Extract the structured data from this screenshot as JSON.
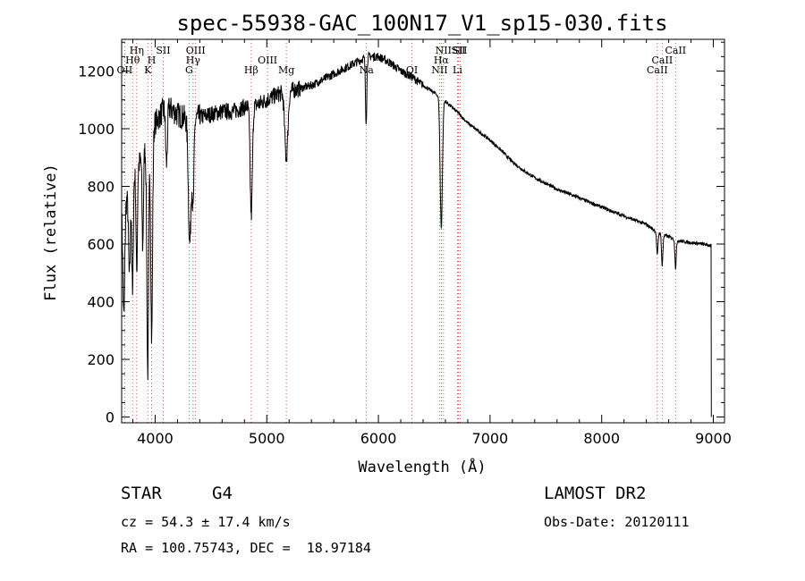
{
  "chart_data": {
    "type": "line",
    "title": "spec-55938-GAC_100N17_V1_sp15-030.fits",
    "xlabel": "Wavelength (Å)",
    "ylabel": "Flux (relative)",
    "xlim": [
      3700,
      9100
    ],
    "ylim": [
      -20,
      1310
    ],
    "xticks": [
      4000,
      5000,
      6000,
      7000,
      8000,
      9000
    ],
    "yticks": [
      0,
      200,
      400,
      600,
      800,
      1000,
      1200
    ],
    "continuum": [
      [
        3700,
        700
      ],
      [
        3800,
        820
      ],
      [
        3900,
        920
      ],
      [
        4000,
        1020
      ],
      [
        4100,
        1080
      ],
      [
        4200,
        1050
      ],
      [
        4300,
        1030
      ],
      [
        4400,
        1040
      ],
      [
        4500,
        1050
      ],
      [
        4600,
        1060
      ],
      [
        4700,
        1060
      ],
      [
        4800,
        1075
      ],
      [
        4900,
        1080
      ],
      [
        5000,
        1100
      ],
      [
        5100,
        1120
      ],
      [
        5200,
        1130
      ],
      [
        5300,
        1140
      ],
      [
        5400,
        1150
      ],
      [
        5500,
        1170
      ],
      [
        5600,
        1190
      ],
      [
        5700,
        1210
      ],
      [
        5800,
        1230
      ],
      [
        5900,
        1250
      ],
      [
        6000,
        1250
      ],
      [
        6100,
        1230
      ],
      [
        6200,
        1200
      ],
      [
        6300,
        1180
      ],
      [
        6400,
        1150
      ],
      [
        6500,
        1125
      ],
      [
        6600,
        1095
      ],
      [
        6700,
        1060
      ],
      [
        6800,
        1020
      ],
      [
        6900,
        990
      ],
      [
        7000,
        960
      ],
      [
        7100,
        925
      ],
      [
        7200,
        885
      ],
      [
        7300,
        855
      ],
      [
        7400,
        830
      ],
      [
        7500,
        810
      ],
      [
        7600,
        790
      ],
      [
        7700,
        775
      ],
      [
        7800,
        760
      ],
      [
        7900,
        743
      ],
      [
        8000,
        728
      ],
      [
        8100,
        712
      ],
      [
        8200,
        697
      ],
      [
        8300,
        682
      ],
      [
        8400,
        668
      ],
      [
        8500,
        640
      ],
      [
        8600,
        625
      ],
      [
        8700,
        610
      ],
      [
        8800,
        605
      ],
      [
        8900,
        600
      ],
      [
        8980,
        595
      ]
    ],
    "absorption_features": [
      {
        "x": 3720,
        "depth": 380,
        "width": 8
      },
      {
        "x": 3770,
        "depth": 300,
        "width": 8
      },
      {
        "x": 3798,
        "depth": 400,
        "width": 6
      },
      {
        "x": 3835,
        "depth": 350,
        "width": 6
      },
      {
        "x": 3889,
        "depth": 320,
        "width": 6
      },
      {
        "x": 3934,
        "depth": 800,
        "width": 8
      },
      {
        "x": 3969,
        "depth": 720,
        "width": 8
      },
      {
        "x": 4102,
        "depth": 200,
        "width": 8
      },
      {
        "x": 4310,
        "depth": 430,
        "width": 12
      },
      {
        "x": 4340,
        "depth": 300,
        "width": 8
      },
      {
        "x": 4861,
        "depth": 380,
        "width": 10
      },
      {
        "x": 5175,
        "depth": 230,
        "width": 14
      },
      {
        "x": 5890,
        "depth": 220,
        "width": 6
      },
      {
        "x": 6563,
        "depth": 450,
        "width": 10
      },
      {
        "x": 8498,
        "depth": 80,
        "width": 6
      },
      {
        "x": 8542,
        "depth": 110,
        "width": 6
      },
      {
        "x": 8662,
        "depth": 100,
        "width": 6
      }
    ],
    "spectral_lines": [
      {
        "label": "OII",
        "x": 3727
      },
      {
        "label": "Hθ",
        "x": 3798
      },
      {
        "label": "Hη",
        "x": 3835
      },
      {
        "label": "K",
        "x": 3934
      },
      {
        "label": "H",
        "x": 3969
      },
      {
        "label": "SII",
        "x": 4072
      },
      {
        "label": "G",
        "x": 4304
      },
      {
        "label": "Hγ",
        "x": 4340
      },
      {
        "label": "OIII",
        "x": 4363
      },
      {
        "label": "Hβ",
        "x": 4861
      },
      {
        "label": "OIII",
        "x": 5007
      },
      {
        "label": "Mg",
        "x": 5175
      },
      {
        "label": "Na",
        "x": 5893
      },
      {
        "label": "OI",
        "x": 6300
      },
      {
        "label": "NII",
        "x": 6548
      },
      {
        "label": "Hα",
        "x": 6563
      },
      {
        "label": "NII",
        "x": 6583
      },
      {
        "label": "Li",
        "x": 6708
      },
      {
        "label": "SII",
        "x": 6717
      },
      {
        "label": "SII",
        "x": 6731
      },
      {
        "label": "CaII",
        "x": 8498
      },
      {
        "label": "CaII",
        "x": 8542
      },
      {
        "label": "CaII",
        "x": 8662
      }
    ]
  },
  "info": {
    "object_class": "STAR",
    "subclass": "G4",
    "survey": "LAMOST DR2",
    "cz": "cz = 54.3 ± 17.4 km/s",
    "obs_date": "Obs-Date: 20120111",
    "coords": "RA = 100.75743, DEC =  18.97184"
  }
}
